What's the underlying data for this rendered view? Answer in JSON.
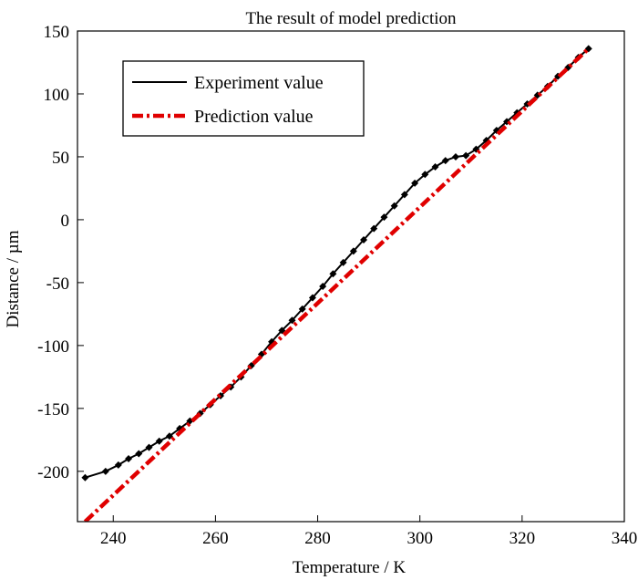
{
  "chart_data": {
    "type": "line",
    "title": "The result of model prediction",
    "xlabel": "Temperature / K",
    "ylabel": "Distance / µm",
    "xlim": [
      233,
      340
    ],
    "ylim": [
      -240,
      150
    ],
    "xticks": [
      240,
      260,
      280,
      300,
      320,
      340
    ],
    "yticks": [
      -200,
      -150,
      -100,
      -50,
      0,
      50,
      100,
      150
    ],
    "grid": false,
    "legend_position": "top-left",
    "series": [
      {
        "name": "Experiment value",
        "color": "#000000",
        "style": "solid-with-diamond-markers",
        "x": [
          234.5,
          238.5,
          241,
          243,
          245,
          247,
          249,
          251,
          253,
          255,
          257,
          259,
          261,
          263,
          265,
          267,
          269,
          271,
          273,
          275,
          277,
          279,
          281,
          283,
          285,
          287,
          289,
          291,
          293,
          295,
          297,
          299,
          301,
          303,
          305,
          307,
          309,
          311,
          313,
          315,
          317,
          319,
          321,
          323,
          325,
          327,
          329,
          331,
          333
        ],
        "y": [
          -205,
          -200,
          -195,
          -190,
          -186,
          -181,
          -176,
          -172,
          -166,
          -160,
          -154,
          -147,
          -140,
          -133,
          -125,
          -116,
          -107,
          -97,
          -88,
          -80,
          -71,
          -62,
          -53,
          -43,
          -34,
          -25,
          -16,
          -7,
          2,
          11,
          20,
          29,
          36,
          42,
          47,
          50,
          51,
          56,
          63,
          71,
          78,
          85,
          92,
          99,
          106,
          114,
          121,
          129,
          136
        ]
      },
      {
        "name": "Prediction value",
        "color": "#e00000",
        "style": "dash-dot",
        "x": [
          234.5,
          333
        ],
        "y": [
          -240,
          136
        ]
      }
    ]
  }
}
